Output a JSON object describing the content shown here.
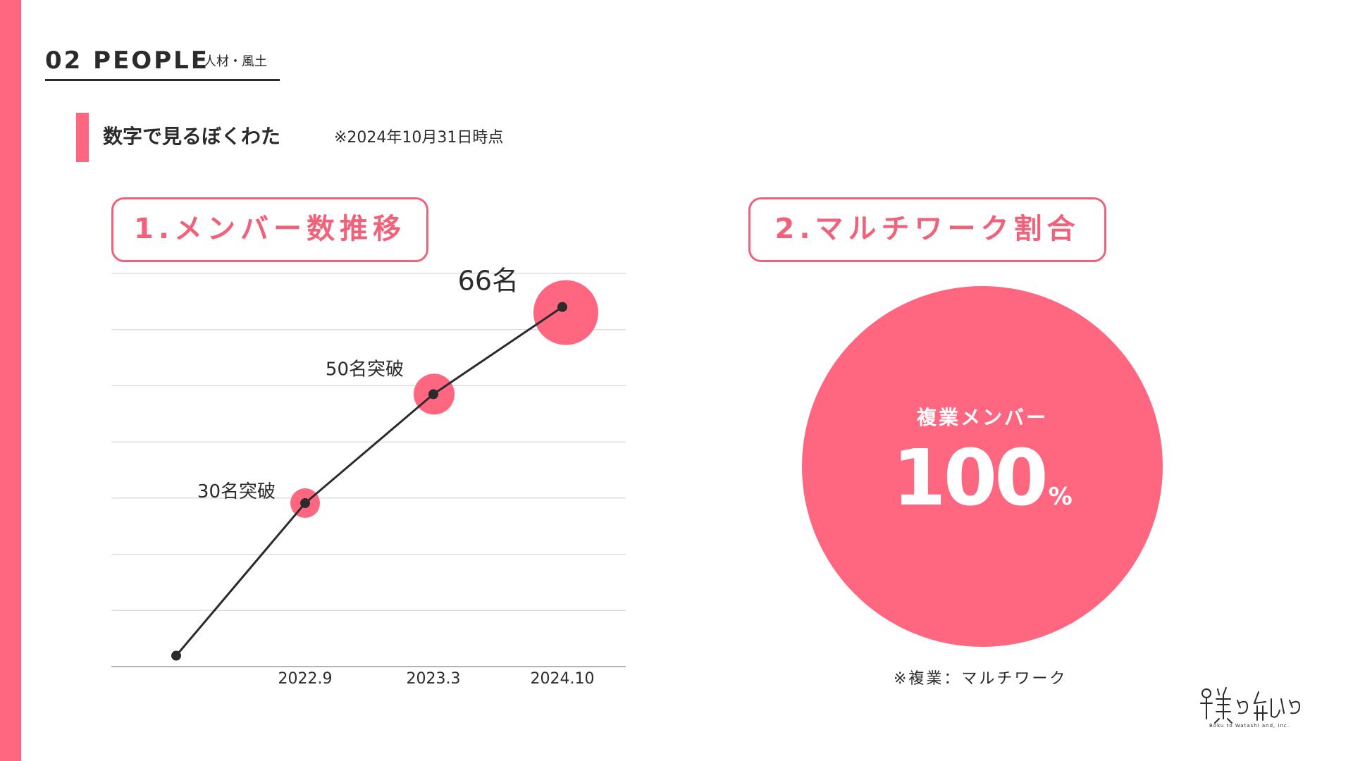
{
  "header": {
    "title": "02 PEOPLE",
    "subtitle": "人材・風土"
  },
  "section": {
    "title": "数字で見るぼくわた",
    "note": "※2024年10月31日時点"
  },
  "panel1": {
    "label": "1.メンバー数推移"
  },
  "panel2": {
    "label": "2.マルチワーク割合"
  },
  "chart_data": {
    "type": "line",
    "title": "1.メンバー数推移",
    "xlabel": "",
    "ylabel": "",
    "grid": true,
    "ylim": [
      0,
      70
    ],
    "x": [
      "",
      "2022.9",
      "2023.3",
      "2024.10"
    ],
    "values": [
      2,
      30,
      50,
      66
    ],
    "annotations": [
      "",
      "30名突破",
      "50名突破",
      "66名"
    ],
    "line_color": "#2b2b2b",
    "marker_color": "#ff6680"
  },
  "donut": {
    "label": "複業メンバー",
    "value": "100",
    "unit": "%",
    "color": "#ff6680"
  },
  "footnote": "※複業：マルチワーク",
  "logo": {
    "name": "boku-to-watashi-logo",
    "text": "Boku to Watashi and, inc."
  }
}
